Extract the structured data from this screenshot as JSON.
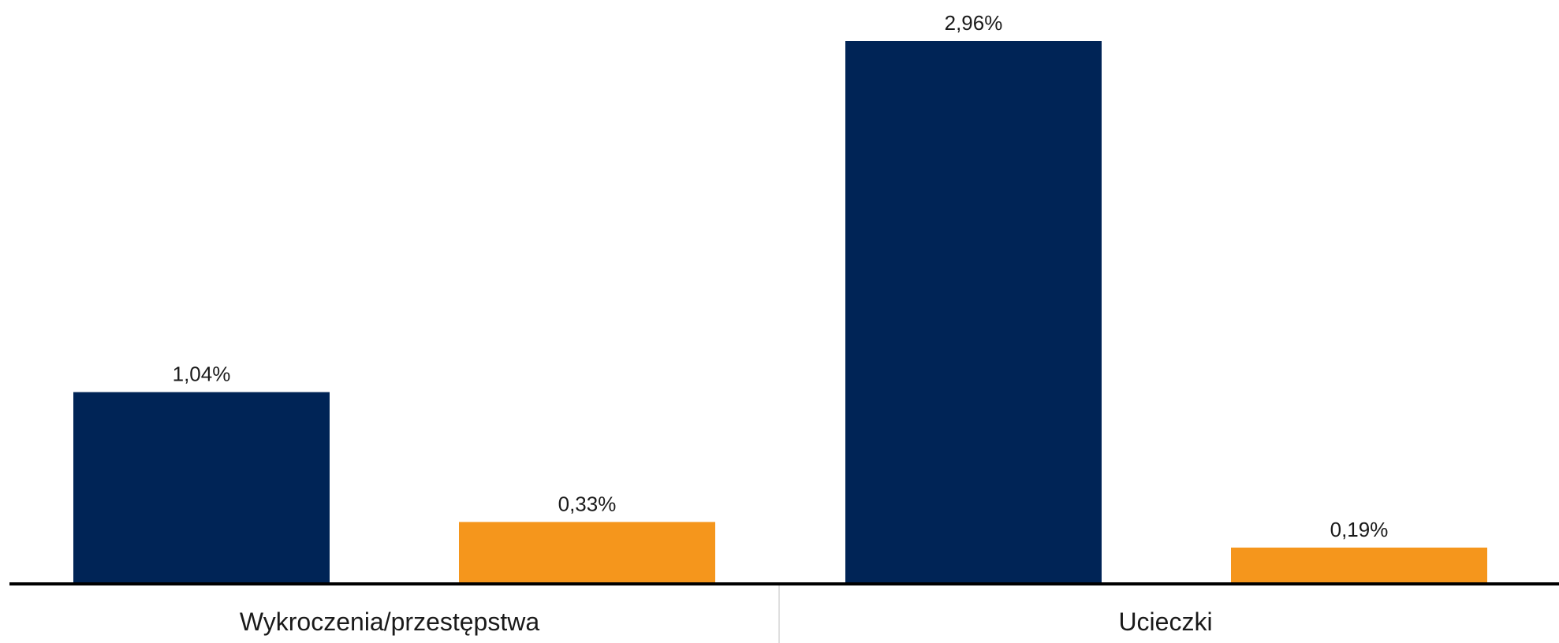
{
  "chart_data": {
    "type": "bar",
    "categories": [
      "Wykroczenia/przestępstwa",
      "Ucieczki"
    ],
    "series": [
      {
        "values": [
          1.04,
          2.96
        ],
        "labels": [
          "1,04%",
          "2,96%"
        ],
        "color": "#002456"
      },
      {
        "values": [
          0.33,
          0.19
        ],
        "labels": [
          "0,33%",
          "0,19%"
        ],
        "color": "#f5961c"
      }
    ],
    "unit": "%",
    "ylim": [
      0,
      2.96
    ],
    "grid": false,
    "legend": "none"
  }
}
